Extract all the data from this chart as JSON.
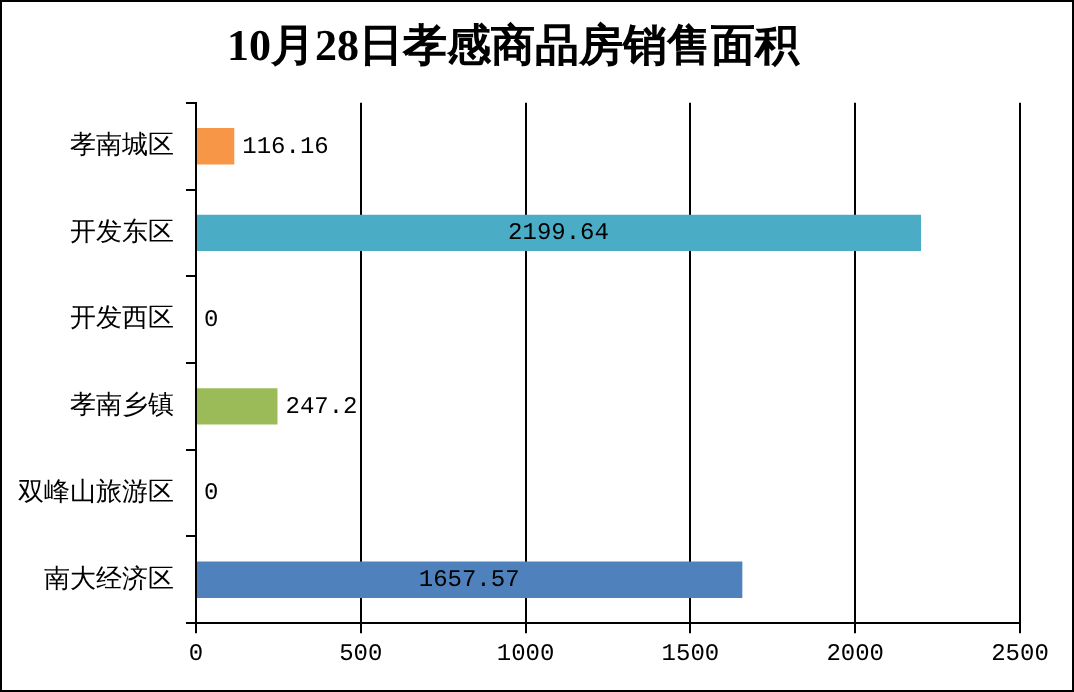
{
  "chart_data": {
    "type": "bar",
    "orientation": "horizontal",
    "title": "10月28日孝感商品房销售面积",
    "categories": [
      "孝南城区",
      "开发东区",
      "开发西区",
      "孝南乡镇",
      "双峰山旅游区",
      "南大经济区"
    ],
    "values": [
      116.16,
      2199.64,
      0,
      247.2,
      0,
      1657.57
    ],
    "colors": [
      "#f79646",
      "#4bacc6",
      "#c0504d",
      "#9bbb59",
      "#8064a2",
      "#4f81bd"
    ],
    "xlim": [
      0,
      2500
    ],
    "xticks": [
      0,
      500,
      1000,
      1500,
      2000,
      2500
    ],
    "grid": "x",
    "data_labels": true,
    "legend": false
  }
}
